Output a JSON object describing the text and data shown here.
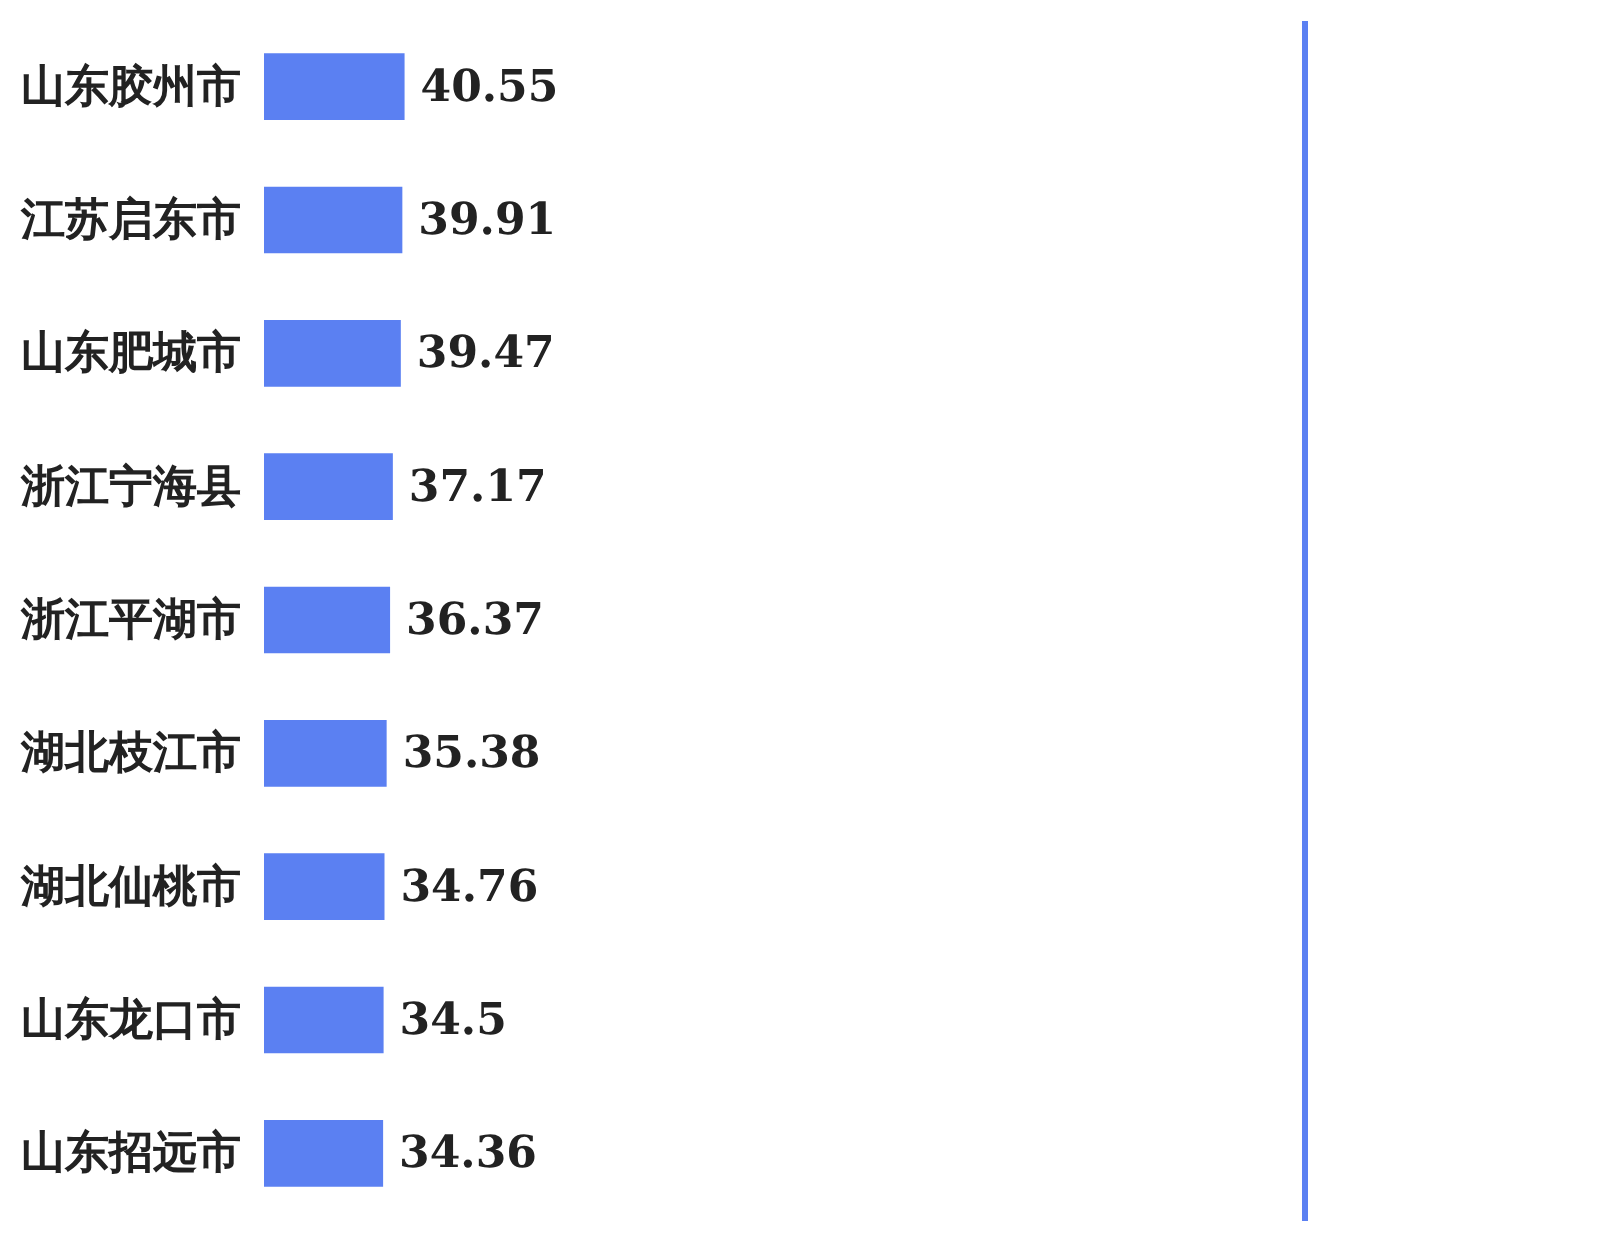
{
  "chart_data": {
    "type": "bar",
    "orientation": "horizontal",
    "categories": [
      "山东胶州市",
      "江苏启东市",
      "山东肥城市",
      "浙江宁海县",
      "浙江平湖市",
      "湖北枝江市",
      "湖北仙桃市",
      "山东龙口市",
      "山东招远市"
    ],
    "values": [
      40.55,
      39.91,
      39.47,
      37.17,
      36.37,
      35.38,
      34.76,
      34.5,
      34.36
    ],
    "color": "#5b80f2",
    "xlim": [
      0,
      300
    ],
    "data_labels": true,
    "tick_labels": "y"
  }
}
